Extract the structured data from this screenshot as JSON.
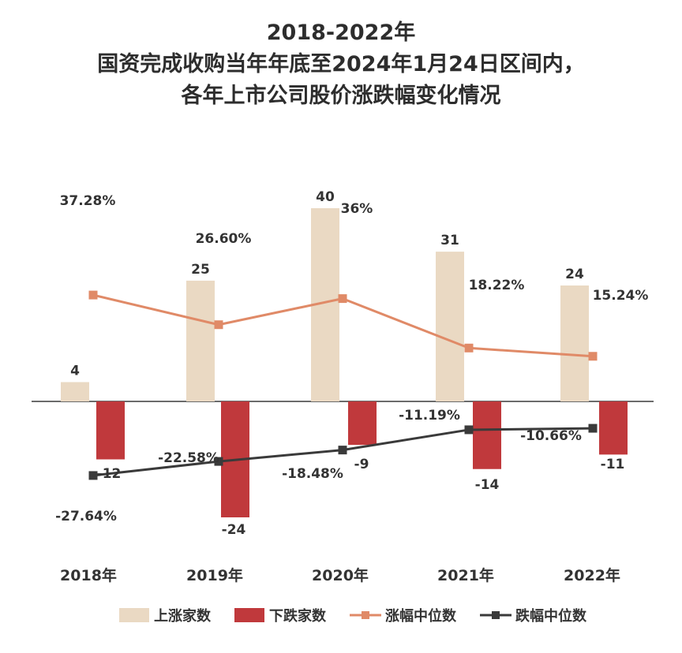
{
  "title": {
    "line1": "2018-2022年",
    "line2": "国资完成收购当年年底至2024年1月24日区间内，",
    "line3": "各年上市公司股价涨跌幅变化情况"
  },
  "chart_data": {
    "type": "bar+line",
    "categories": [
      "2018年",
      "2019年",
      "2020年",
      "2021年",
      "2022年"
    ],
    "series": [
      {
        "name": "上涨家数",
        "kind": "bar",
        "color": "#ead9c3",
        "values": [
          4,
          25,
          40,
          31,
          24
        ],
        "labels": [
          "4",
          "25",
          "40",
          "31",
          "24"
        ]
      },
      {
        "name": "下跌家数",
        "kind": "bar",
        "color": "#c0393c",
        "values": [
          -12,
          -24,
          -9,
          -14,
          -11
        ],
        "labels": [
          "-12",
          "-24",
          "-9",
          "-14",
          "-11"
        ]
      },
      {
        "name": "涨幅中位数",
        "kind": "line",
        "color": "#e08a67",
        "values": [
          37.28,
          26.6,
          36.0,
          18.22,
          15.24
        ],
        "labels": [
          "37.28%",
          "26.60%",
          "36%",
          "18.22%",
          "15.24%"
        ]
      },
      {
        "name": "跌幅中位数",
        "kind": "line",
        "color": "#3a3a3a",
        "values": [
          -27.64,
          -22.58,
          -18.48,
          -11.19,
          -10.66
        ],
        "labels": [
          "-27.64%",
          "-22.58%",
          "-18.48%",
          "-11.19%",
          "-10.66%"
        ]
      }
    ],
    "legend_position": "bottom"
  }
}
